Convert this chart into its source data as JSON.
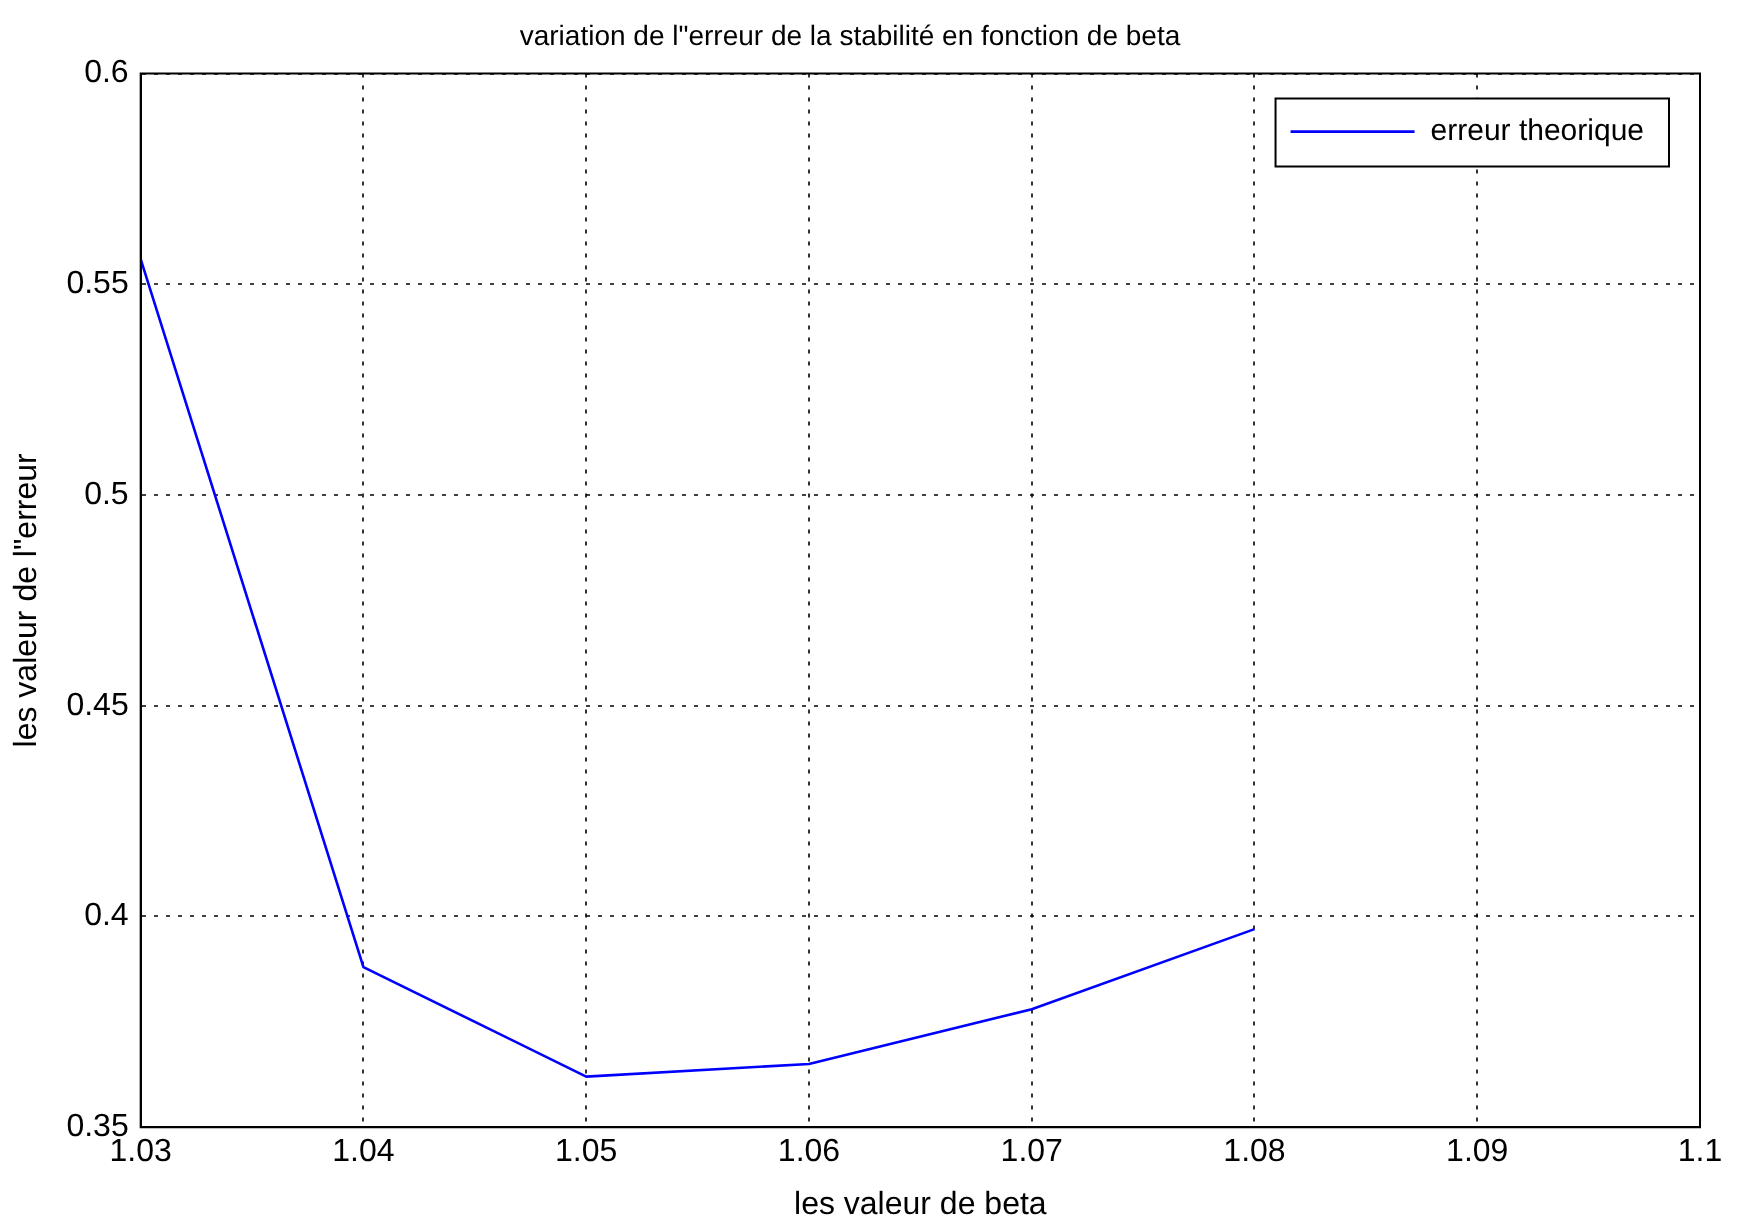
{
  "chart_data": {
    "type": "line",
    "title": "variation de l\"erreur de la stabilité en fonction de beta",
    "xlabel": "les valeur de beta",
    "ylabel": "les valeur de l\"erreur",
    "x": [
      1.03,
      1.04,
      1.05,
      1.06,
      1.07,
      1.08
    ],
    "series": [
      {
        "name": "erreur theorique",
        "color": "#0000ff",
        "values": [
          0.556,
          0.388,
          0.362,
          0.365,
          0.378,
          0.397
        ]
      }
    ],
    "xlim": [
      1.03,
      1.1
    ],
    "xticks": [
      1.03,
      1.04,
      1.05,
      1.06,
      1.07,
      1.08,
      1.09,
      1.1
    ],
    "ylim": [
      0.35,
      0.6
    ],
    "yticks": [
      0.35,
      0.4,
      0.45,
      0.5,
      0.55,
      0.6
    ],
    "grid": true,
    "legend": "top right",
    "marker": "none",
    "line_style": "solid"
  }
}
